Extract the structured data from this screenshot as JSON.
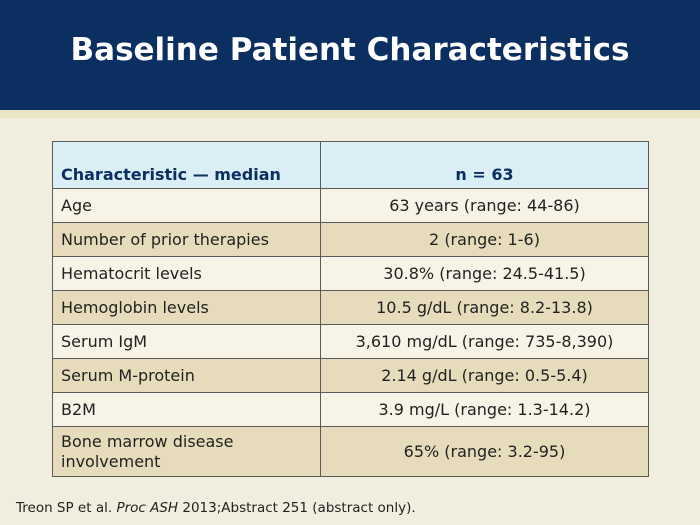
{
  "slide": {
    "title": "Baseline Patient Characteristics"
  },
  "table": {
    "headers": [
      "Characteristic — median",
      "n = 63"
    ],
    "rows": [
      [
        "Age",
        "63 years (range: 44-86)"
      ],
      [
        "Number of prior therapies",
        "2 (range: 1-6)"
      ],
      [
        "Hematocrit levels",
        "30.8% (range: 24.5-41.5)"
      ],
      [
        "Hemoglobin levels",
        "10.5 g/dL (range: 8.2-13.8)"
      ],
      [
        "Serum IgM",
        "3,610 mg/dL (range: 735-8,390)"
      ],
      [
        "Serum M-protein",
        "2.14 g/dL (range: 0.5-5.4)"
      ],
      [
        "B2M",
        "3.9 mg/L (range: 1.3-14.2)"
      ],
      [
        "Bone marrow disease involvement",
        "65% (range: 3.2-95)"
      ]
    ]
  },
  "footnote": {
    "prefix": "Treon SP et al. ",
    "journal": "Proc ASH",
    "suffix": " 2013;Abstract 251 (abstract only)."
  },
  "colors": {
    "header_bg": "#0b2f61",
    "page_bg": "#f2eedf",
    "table_header_bg": "#d9eef5",
    "row_light": "#f7f3e6",
    "row_dark": "#e6dcbc"
  }
}
